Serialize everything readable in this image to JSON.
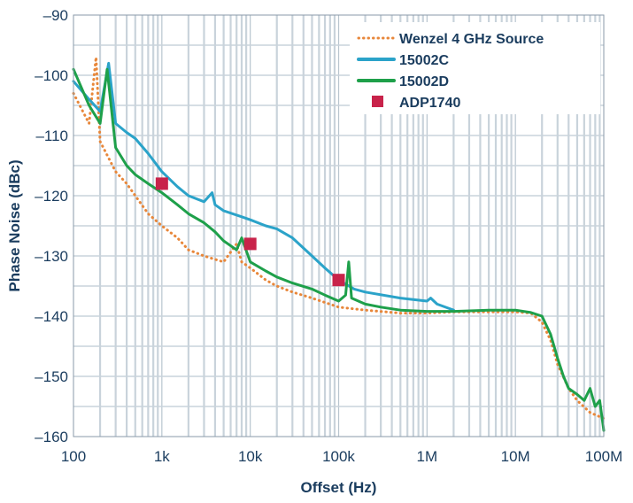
{
  "chart_data": {
    "type": "line",
    "xscale": "log",
    "xlabel": "Offset (Hz)",
    "ylabel": "Phase Noise (dBc)",
    "xlim": [
      100,
      100000000
    ],
    "ylim": [
      -160,
      -90
    ],
    "grid": true,
    "legend_position": "top-right",
    "xticks": [
      {
        "v": 100,
        "label": "100"
      },
      {
        "v": 1000,
        "label": "1k"
      },
      {
        "v": 10000,
        "label": "10k"
      },
      {
        "v": 100000,
        "label": "100k"
      },
      {
        "v": 1000000,
        "label": "1M"
      },
      {
        "v": 10000000,
        "label": "10M"
      },
      {
        "v": 100000000,
        "label": "100M"
      }
    ],
    "yticks": [
      {
        "v": -90,
        "label": "–90"
      },
      {
        "v": -100,
        "label": "–100"
      },
      {
        "v": -110,
        "label": "–110"
      },
      {
        "v": -120,
        "label": "–120"
      },
      {
        "v": -130,
        "label": "–130"
      },
      {
        "v": -140,
        "label": "–140"
      },
      {
        "v": -150,
        "label": "–150"
      },
      {
        "v": -160,
        "label": "–160"
      }
    ],
    "series": [
      {
        "name": "Wenzel 4 GHz Source",
        "style": "dotted",
        "color": "#e8873a",
        "points": [
          [
            100,
            -103
          ],
          [
            150,
            -108
          ],
          [
            180,
            -97
          ],
          [
            200,
            -111
          ],
          [
            300,
            -116
          ],
          [
            400,
            -118
          ],
          [
            500,
            -120
          ],
          [
            700,
            -123
          ],
          [
            1000,
            -125
          ],
          [
            1500,
            -127
          ],
          [
            2000,
            -129
          ],
          [
            3000,
            -130
          ],
          [
            5000,
            -131
          ],
          [
            7000,
            -128
          ],
          [
            8000,
            -131
          ],
          [
            10000,
            -132
          ],
          [
            15000,
            -134
          ],
          [
            20000,
            -135
          ],
          [
            30000,
            -136
          ],
          [
            50000,
            -137
          ],
          [
            100000,
            -138.5
          ],
          [
            200000,
            -139
          ],
          [
            500000,
            -139.5
          ],
          [
            1000000,
            -139.5
          ],
          [
            2000000,
            -139.3
          ],
          [
            5000000,
            -139.3
          ],
          [
            10000000,
            -139.3
          ],
          [
            15000000,
            -139.5
          ],
          [
            20000000,
            -141
          ],
          [
            25000000,
            -144
          ],
          [
            30000000,
            -148
          ],
          [
            40000000,
            -152
          ],
          [
            50000000,
            -154
          ],
          [
            70000000,
            -156
          ],
          [
            100000000,
            -157
          ]
        ]
      },
      {
        "name": "15002C",
        "style": "solid",
        "color": "#2ba3c9",
        "points": [
          [
            100,
            -101
          ],
          [
            150,
            -104
          ],
          [
            200,
            -106
          ],
          [
            250,
            -98
          ],
          [
            300,
            -108
          ],
          [
            400,
            -109.5
          ],
          [
            500,
            -110.5
          ],
          [
            700,
            -113
          ],
          [
            1000,
            -116
          ],
          [
            1500,
            -118.5
          ],
          [
            2000,
            -120
          ],
          [
            3000,
            -121
          ],
          [
            3700,
            -119.5
          ],
          [
            4000,
            -121.5
          ],
          [
            5000,
            -122.5
          ],
          [
            8000,
            -123.5
          ],
          [
            10000,
            -124
          ],
          [
            15000,
            -125
          ],
          [
            20000,
            -125.5
          ],
          [
            30000,
            -127
          ],
          [
            50000,
            -130
          ],
          [
            70000,
            -132
          ],
          [
            100000,
            -134
          ],
          [
            150000,
            -135.5
          ],
          [
            200000,
            -136
          ],
          [
            500000,
            -137
          ],
          [
            1000000,
            -137.5
          ],
          [
            1100000,
            -137
          ],
          [
            1300000,
            -138
          ],
          [
            2000000,
            -139
          ]
        ]
      },
      {
        "name": "15002D",
        "style": "solid",
        "color": "#1ea04a",
        "points": [
          [
            100,
            -99
          ],
          [
            150,
            -105
          ],
          [
            200,
            -108
          ],
          [
            240,
            -99
          ],
          [
            300,
            -112
          ],
          [
            400,
            -115
          ],
          [
            500,
            -116.5
          ],
          [
            700,
            -118
          ],
          [
            1000,
            -119.5
          ],
          [
            1500,
            -121.5
          ],
          [
            2000,
            -123
          ],
          [
            3000,
            -124.5
          ],
          [
            4000,
            -126
          ],
          [
            5000,
            -127.5
          ],
          [
            7000,
            -129
          ],
          [
            8000,
            -127
          ],
          [
            10000,
            -131
          ],
          [
            15000,
            -132.5
          ],
          [
            20000,
            -133.5
          ],
          [
            30000,
            -134.5
          ],
          [
            50000,
            -135.5
          ],
          [
            70000,
            -136.5
          ],
          [
            100000,
            -137.5
          ],
          [
            120000,
            -136.5
          ],
          [
            130000,
            -131
          ],
          [
            140000,
            -137
          ],
          [
            200000,
            -138
          ],
          [
            300000,
            -138.5
          ],
          [
            500000,
            -139
          ],
          [
            1000000,
            -139.2
          ],
          [
            2000000,
            -139.2
          ],
          [
            5000000,
            -139
          ],
          [
            10000000,
            -139
          ],
          [
            15000000,
            -139.4
          ],
          [
            20000000,
            -140
          ],
          [
            25000000,
            -143
          ],
          [
            30000000,
            -147
          ],
          [
            35000000,
            -150
          ],
          [
            40000000,
            -152
          ],
          [
            50000000,
            -153
          ],
          [
            60000000,
            -154
          ],
          [
            70000000,
            -152
          ],
          [
            80000000,
            -155
          ],
          [
            90000000,
            -154
          ],
          [
            100000000,
            -159
          ]
        ]
      },
      {
        "name": "ADP1740",
        "style": "marker",
        "color": "#c8234a",
        "points": [
          [
            1000,
            -118
          ],
          [
            10000,
            -128
          ],
          [
            100000,
            -134
          ]
        ]
      }
    ]
  }
}
